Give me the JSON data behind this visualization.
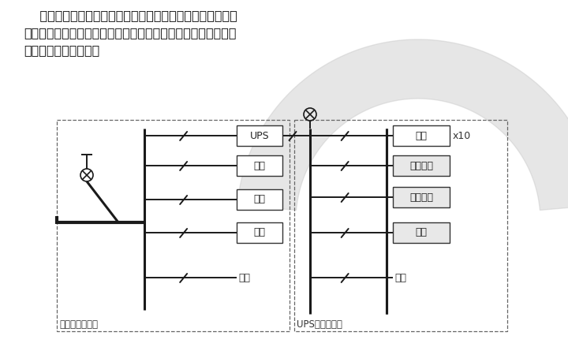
{
  "bg_color": "#ffffff",
  "header_lines": [
    "    在设计时需要做出配电图，再根据需要配置配电柜、电力电",
    "缆、电源插座、走线路由等。以下是一个机房的基本配电图，大",
    "型机房还要复杂的多。"
  ],
  "box1_label": "市电输入配电箱",
  "box2_label": "UPS输出配电箱",
  "left_items": [
    "UPS",
    "空调",
    "照明",
    "插座",
    "备用"
  ],
  "right_items": [
    "机柜",
    "环境监控",
    "应急照明",
    "消防",
    "备用"
  ],
  "x10_label": "x10",
  "watermark_color": "#c8c8c8",
  "line_color": "#1a1a1a",
  "dash_color": "#666666",
  "text_color": "#111111"
}
